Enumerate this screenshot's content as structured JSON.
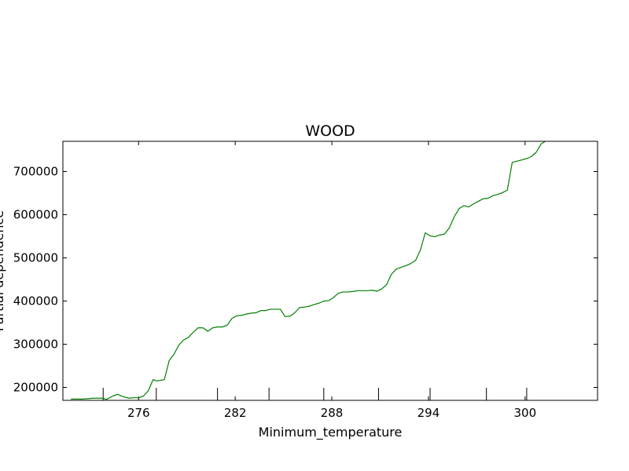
{
  "chart_data": {
    "type": "line",
    "title": "WOOD",
    "xlabel": "Minimum_temperature",
    "ylabel": "Partial dependence",
    "xlim": [
      271.3,
      304.5
    ],
    "ylim": [
      170000,
      770000
    ],
    "x_ticks": [
      276,
      282,
      288,
      294,
      300
    ],
    "y_ticks": [
      200000,
      300000,
      400000,
      500000,
      600000,
      700000
    ],
    "rug_x": [
      273.8,
      277.1,
      280.9,
      284.1,
      287.5,
      290.9,
      294.1,
      297.6,
      300.1
    ],
    "grid": false,
    "legend": "none",
    "series": [
      {
        "color": "#007f00",
        "x": [
          271.8,
          272.5,
          273.2,
          273.5,
          273.8,
          274.0,
          274.4,
          274.7,
          275.0,
          275.4,
          275.7,
          276.0,
          276.3,
          276.6,
          276.9,
          277.1,
          277.3,
          277.6,
          277.9,
          278.2,
          278.5,
          278.8,
          279.1,
          279.4,
          279.7,
          280.0,
          280.3,
          280.6,
          280.9,
          281.2,
          281.5,
          281.8,
          282.1,
          282.4,
          282.7,
          283.0,
          283.3,
          283.6,
          283.9,
          284.2,
          284.5,
          284.8,
          285.1,
          285.4,
          285.7,
          286.0,
          286.3,
          286.6,
          286.9,
          287.2,
          287.5,
          287.8,
          288.1,
          288.4,
          288.7,
          289.0,
          289.3,
          289.6,
          289.9,
          290.2,
          290.5,
          290.8,
          291.1,
          291.4,
          291.7,
          292.0,
          292.3,
          292.6,
          292.9,
          293.2,
          293.5,
          293.8,
          294.1,
          294.4,
          294.7,
          295.0,
          295.3,
          295.6,
          295.9,
          296.2,
          296.5,
          296.8,
          297.1,
          297.4,
          297.7,
          298.0,
          298.3,
          298.6,
          298.9,
          299.2,
          299.5,
          299.8,
          300.1,
          300.4,
          300.7,
          301.0,
          301.3,
          301.6
        ],
        "y": [
          173000,
          173000,
          175000,
          175000,
          175000,
          172000,
          180000,
          184000,
          179000,
          175000,
          176000,
          176000,
          180000,
          192000,
          218000,
          215000,
          216000,
          218000,
          262000,
          277000,
          298000,
          310000,
          316000,
          328000,
          338000,
          338000,
          330000,
          338000,
          340000,
          340000,
          344000,
          360000,
          366000,
          367000,
          370000,
          372000,
          373000,
          378000,
          378000,
          381000,
          381000,
          381000,
          364000,
          365000,
          373000,
          385000,
          386000,
          388000,
          392000,
          395000,
          400000,
          401000,
          408000,
          418000,
          421000,
          421000,
          422000,
          424000,
          424000,
          424000,
          425000,
          423000,
          428000,
          438000,
          462000,
          474000,
          478000,
          482000,
          487000,
          494000,
          518000,
          558000,
          551000,
          549000,
          553000,
          555000,
          570000,
          595000,
          614000,
          621000,
          618000,
          625000,
          631000,
          637000,
          638000,
          644000,
          647000,
          651000,
          657000,
          721000,
          724000,
          727000,
          730000,
          735000,
          745000,
          764000,
          771000,
          772000
        ]
      }
    ]
  }
}
